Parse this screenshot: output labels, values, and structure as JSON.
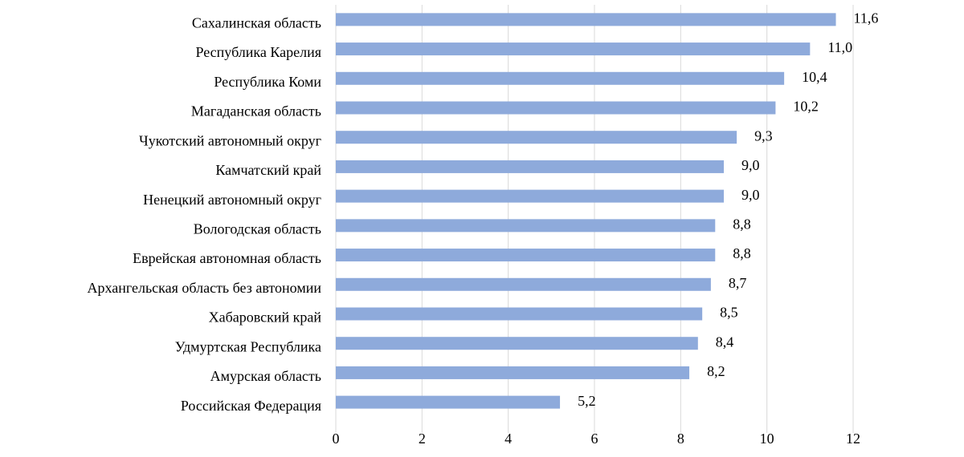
{
  "chart_data": {
    "type": "barh",
    "categories": [
      "Сахалинская область",
      "Республика Карелия",
      "Республика Коми",
      "Магаданская область",
      "Чукотский автономный округ",
      "Камчатский край",
      "Ненецкий автономный округ",
      "Вологодская область",
      "Еврейская автономная область",
      "Архангельская область без автономии",
      "Хабаровский край",
      "Удмуртская Республика",
      "Амурская область",
      "Российская Федерация"
    ],
    "values": [
      11.6,
      11.0,
      10.4,
      10.2,
      9.3,
      9.0,
      9.0,
      8.8,
      8.8,
      8.7,
      8.5,
      8.4,
      8.2,
      5.2
    ],
    "value_labels": [
      "11,6",
      "11,0",
      "10,4",
      "10,2",
      "9,3",
      "9,0",
      "9,0",
      "8,8",
      "8,8",
      "8,7",
      "8,5",
      "8,4",
      "8,2",
      "5,2"
    ],
    "color": "#8eaadb",
    "xlim": [
      0,
      12
    ],
    "xticks": [
      0,
      2,
      4,
      6,
      8,
      10,
      12
    ],
    "grid": true
  }
}
